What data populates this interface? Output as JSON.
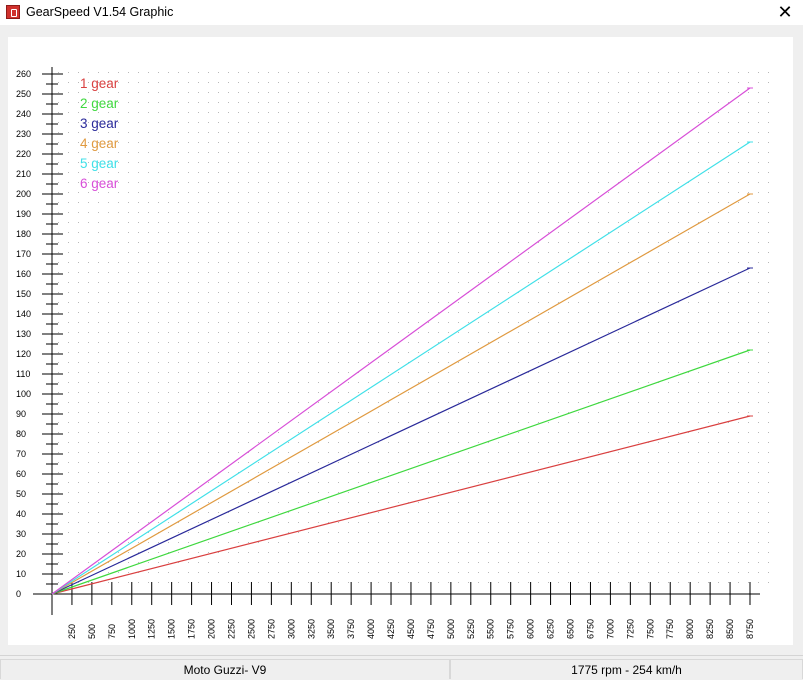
{
  "window": {
    "title": "GearSpeed V1.54 Graphic",
    "close_glyph": "✕",
    "icon": "app-icon"
  },
  "status": {
    "model": "Moto Guzzi- V9",
    "readout": "1775 rpm  -  254 km/h"
  },
  "chart_data": {
    "type": "line",
    "title": "",
    "xlabel": "",
    "ylabel": "",
    "xlim": [
      0,
      8750
    ],
    "ylim": [
      0,
      260
    ],
    "grid": true,
    "legend_position": "top-left",
    "x_ticks": [
      250,
      500,
      750,
      1000,
      1250,
      1500,
      1750,
      2000,
      2250,
      2500,
      2750,
      3000,
      3250,
      3500,
      3750,
      4000,
      4250,
      4500,
      4750,
      5000,
      5250,
      5500,
      5750,
      6000,
      6250,
      6500,
      6750,
      7000,
      7250,
      7500,
      7750,
      8000,
      8250,
      8500,
      8750
    ],
    "y_ticks": [
      0,
      10,
      20,
      30,
      40,
      50,
      60,
      70,
      80,
      90,
      100,
      110,
      120,
      130,
      140,
      150,
      160,
      170,
      180,
      190,
      200,
      210,
      220,
      230,
      240,
      250,
      260
    ],
    "series": [
      {
        "name": "1 gear",
        "color": "#d94040",
        "x": [
          0,
          8750
        ],
        "y": [
          0,
          89
        ]
      },
      {
        "name": "2 gear",
        "color": "#3fd83f",
        "x": [
          0,
          8750
        ],
        "y": [
          0,
          122
        ]
      },
      {
        "name": "3 gear",
        "color": "#2a2a9a",
        "x": [
          0,
          8750
        ],
        "y": [
          0,
          163
        ]
      },
      {
        "name": "4 gear",
        "color": "#e09a40",
        "x": [
          0,
          8750
        ],
        "y": [
          0,
          200
        ]
      },
      {
        "name": "5 gear",
        "color": "#40e0e8",
        "x": [
          0,
          8750
        ],
        "y": [
          0,
          226
        ]
      },
      {
        "name": "6 gear",
        "color": "#d84fd8",
        "x": [
          0,
          8750
        ],
        "y": [
          0,
          253
        ]
      }
    ]
  }
}
